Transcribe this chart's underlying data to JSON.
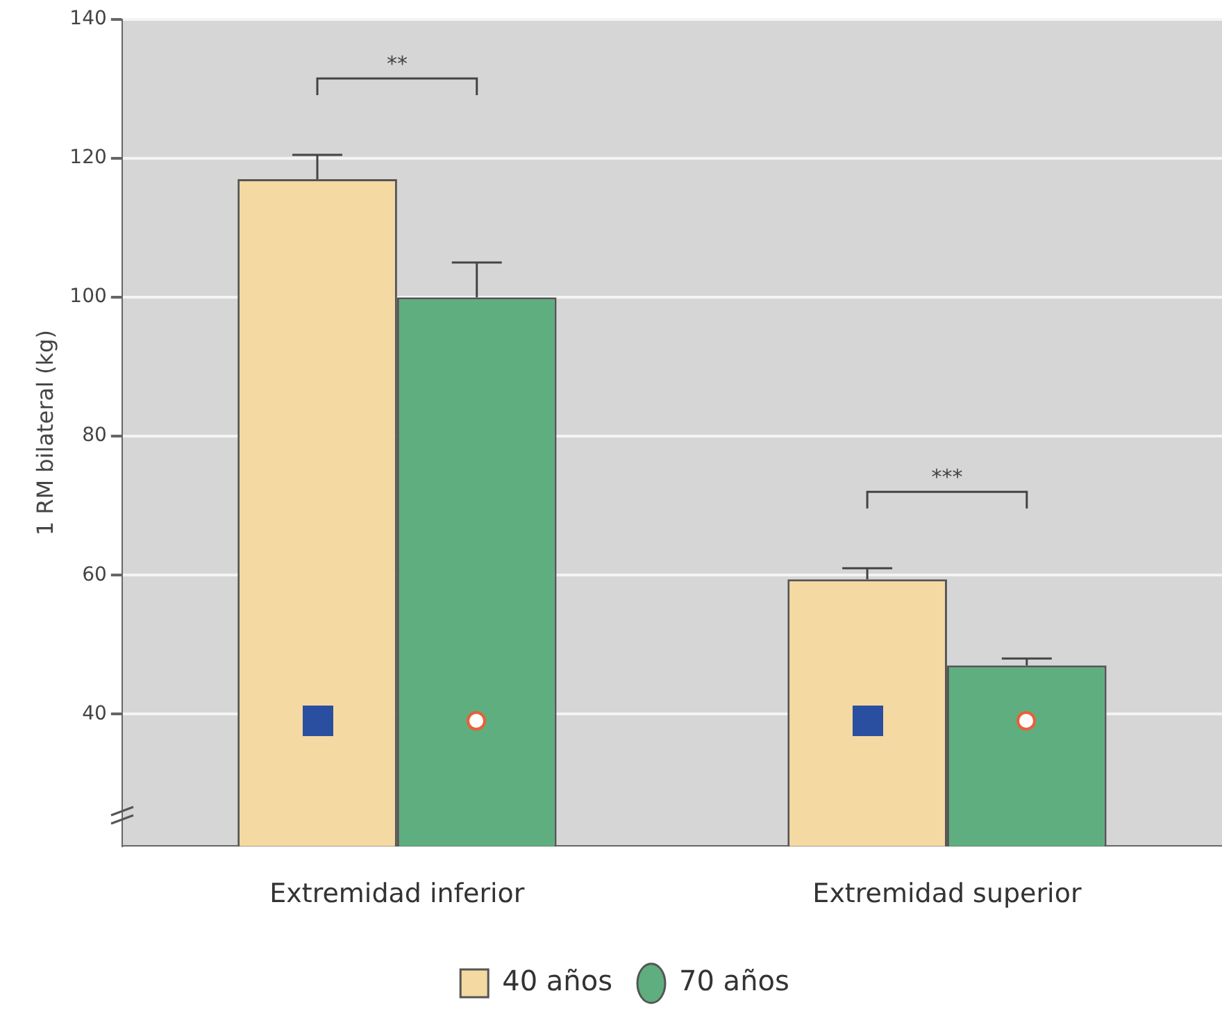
{
  "chart_data": {
    "type": "bar",
    "ylabel": "1 RM bilateral (kg)",
    "categories": [
      "Extremidad inferior",
      "Extremidad superior"
    ],
    "series": [
      {
        "name": "40 años",
        "color": "#f5d9a2",
        "values": [
          117,
          59.4
        ],
        "errors": [
          [
            117,
            120.5
          ],
          [
            59.4,
            61
          ]
        ]
      },
      {
        "name": "70 años",
        "color": "#5fae7f",
        "values": [
          100,
          47
        ],
        "errors": [
          [
            100,
            105
          ],
          [
            47,
            48
          ]
        ]
      }
    ],
    "ylim": [
      21,
      140
    ],
    "yticks": [
      40,
      60,
      80,
      100,
      120,
      140
    ],
    "grid": "y",
    "legend": "bottom",
    "annotations": [
      "**",
      "***"
    ]
  }
}
